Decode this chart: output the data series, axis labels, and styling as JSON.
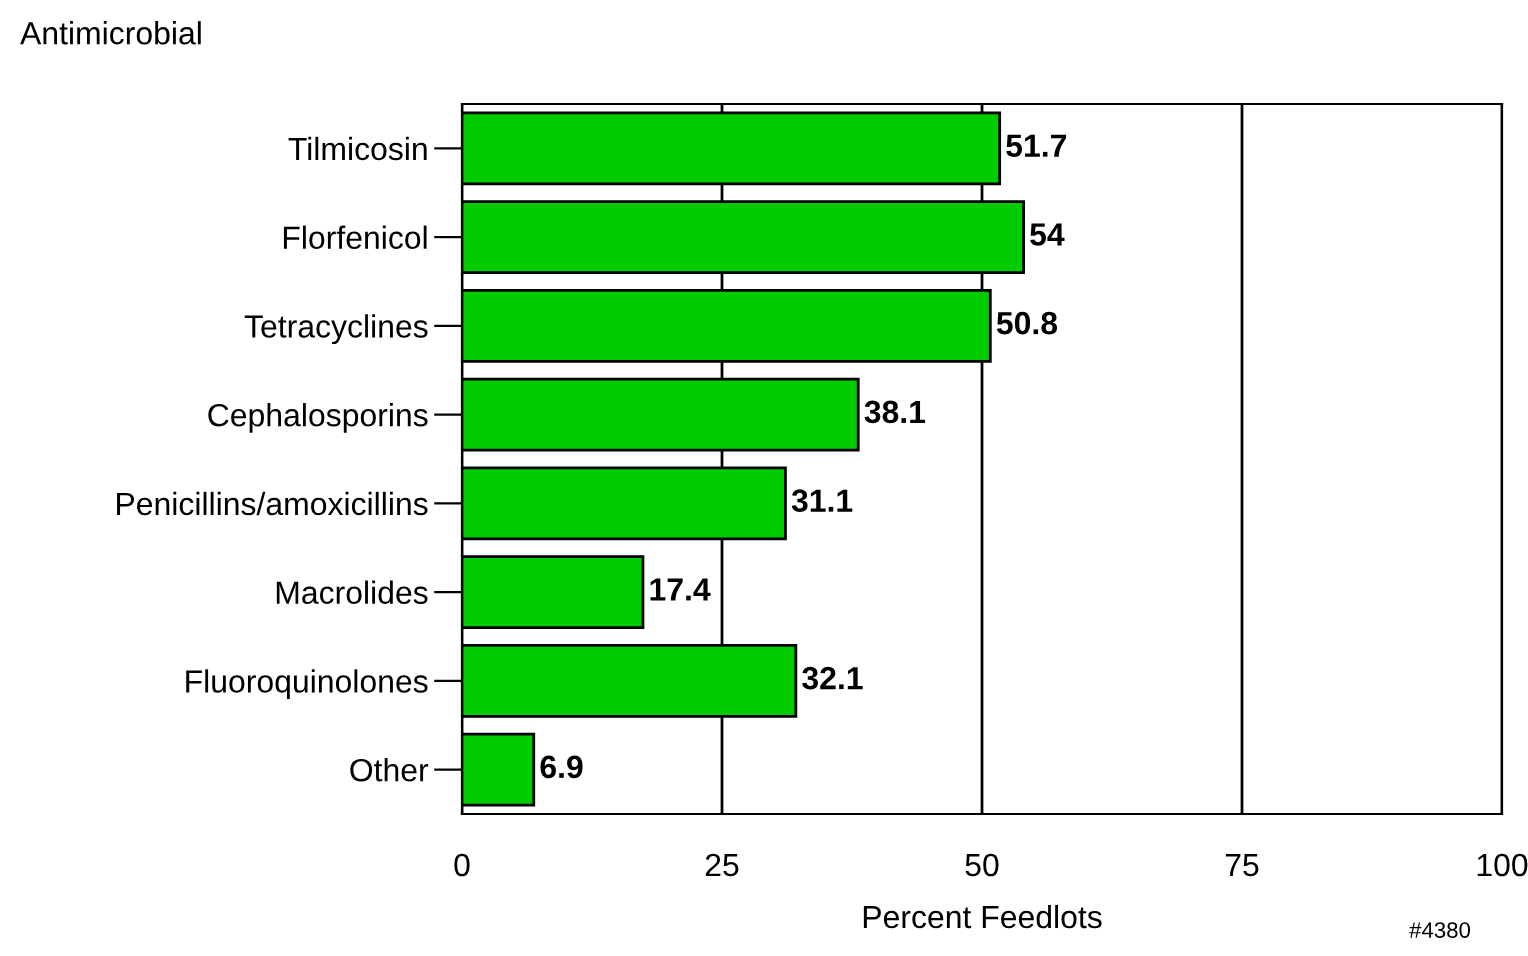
{
  "chart_data": {
    "type": "bar",
    "orientation": "horizontal",
    "title": "Antimicrobial",
    "xlabel": "Percent Feedlots",
    "categories": [
      "Tilmicosin",
      "Florfenicol",
      "Tetracyclines",
      "Cephalosporins",
      "Penicillins/amoxicillins",
      "Macrolides",
      "Fluoroquinolones",
      "Other"
    ],
    "values": [
      51.7,
      54,
      50.8,
      38.1,
      31.1,
      17.4,
      32.1,
      6.9
    ],
    "color": "#00cc00",
    "xlim": [
      0,
      100
    ],
    "xticks": [
      0,
      25,
      50,
      75,
      100
    ],
    "grid": "x",
    "data_labels": true,
    "annotations": [
      "#4380"
    ]
  }
}
